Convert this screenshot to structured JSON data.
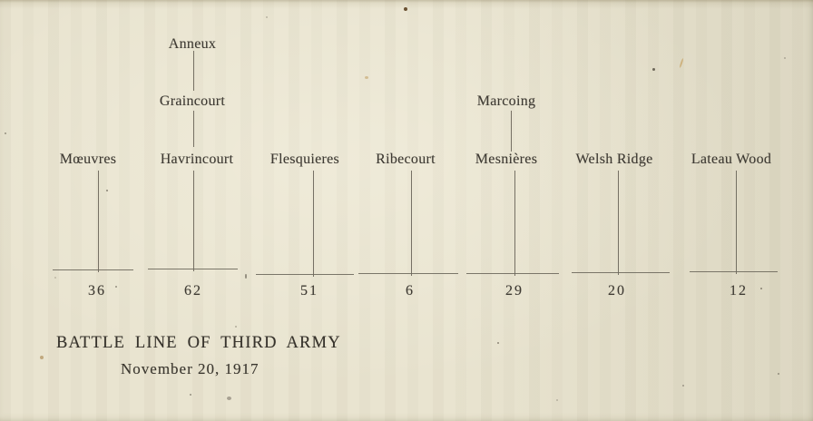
{
  "document": {
    "title": "BATTLE LINE OF THIRD ARMY",
    "date": "November 20, 1917"
  },
  "diagram": {
    "columns": [
      {
        "label": "Mœuvres",
        "number": "36",
        "above": []
      },
      {
        "label": "Havrincourt",
        "number": "62",
        "above": [
          "Graincourt",
          "Anneux"
        ]
      },
      {
        "label": "Flesquieres",
        "number": "51",
        "above": []
      },
      {
        "label": "Ribecourt",
        "number": "6",
        "above": []
      },
      {
        "label": "Mesnières",
        "number": "29",
        "above": [
          "Marcoing"
        ]
      },
      {
        "label": "Welsh Ridge",
        "number": "20",
        "above": []
      },
      {
        "label": "Lateau Wood",
        "number": "12",
        "above": []
      }
    ]
  }
}
